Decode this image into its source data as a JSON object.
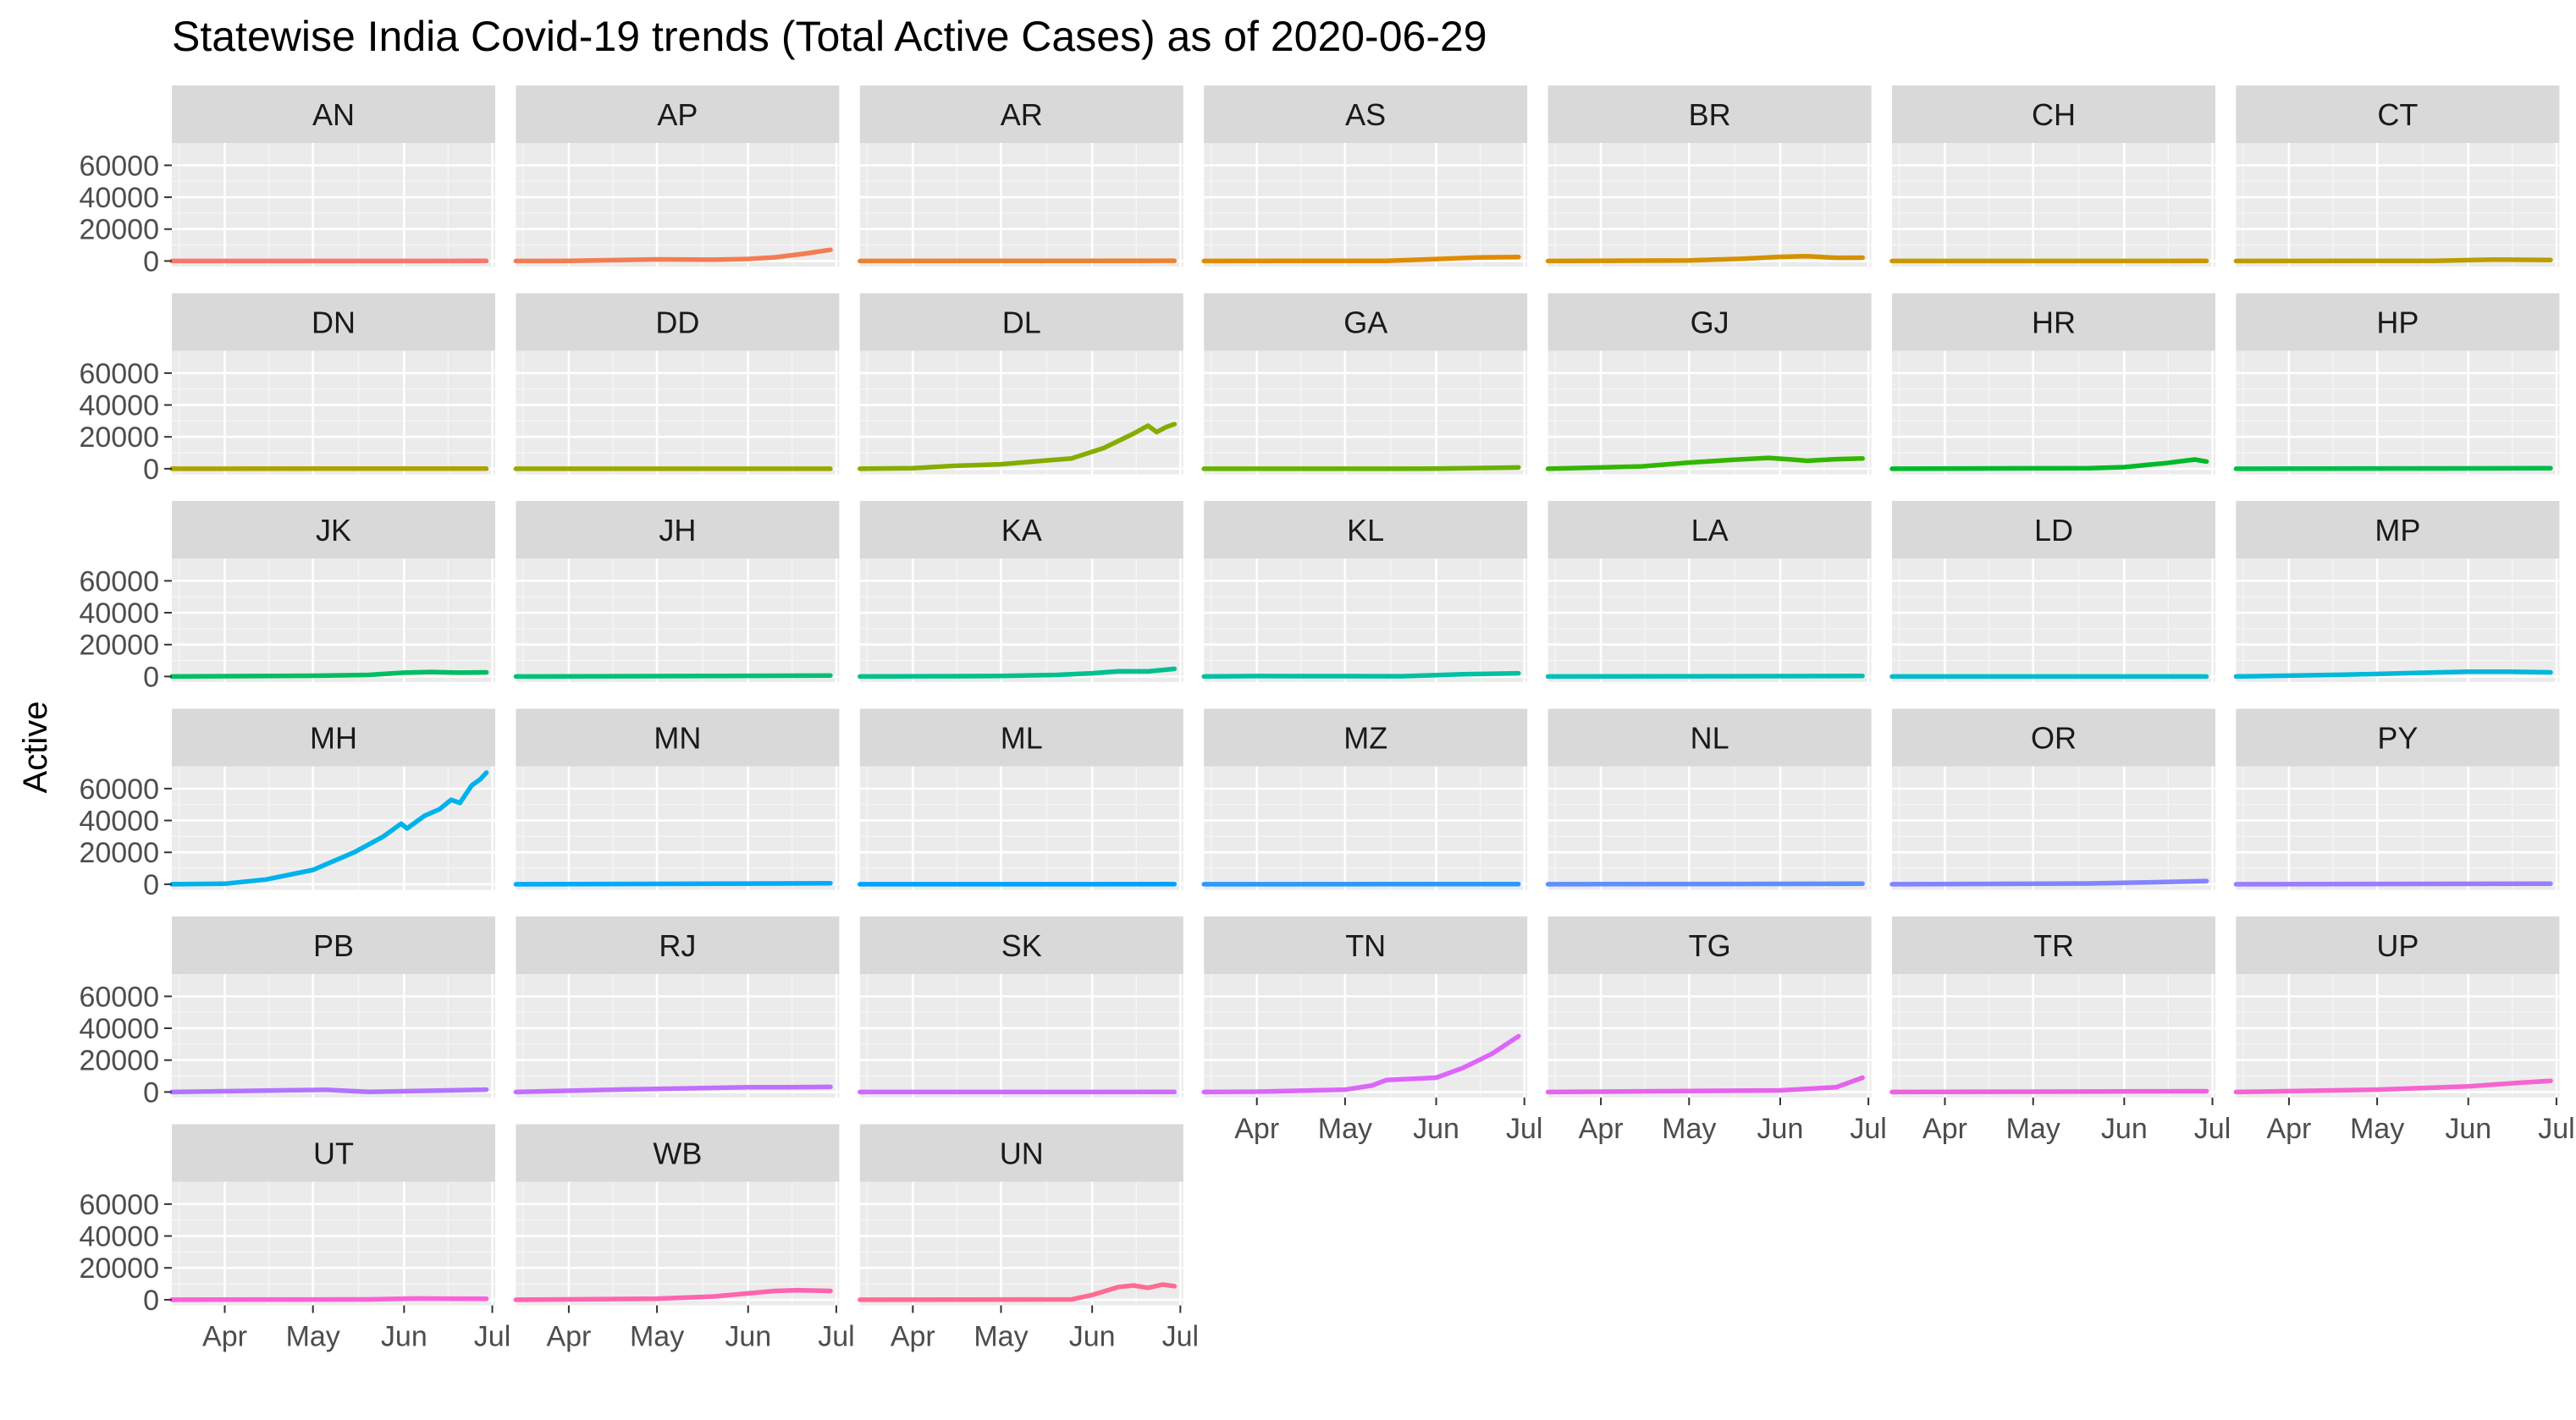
{
  "chart_data": {
    "type": "line",
    "title": "Statewise India Covid-19 trends (Total Active Cases) as of 2020-06-29",
    "xlabel": "",
    "ylabel": "Active",
    "facet_layout": {
      "columns": 7,
      "rows": 6
    },
    "x_ticks": [
      "Apr",
      "May",
      "Jun",
      "Jul"
    ],
    "x_tick_dates": [
      "2020-04-01",
      "2020-05-01",
      "2020-06-01",
      "2020-07-01"
    ],
    "xlim": [
      "2020-03-14",
      "2020-07-02"
    ],
    "y_ticks": [
      0,
      20000,
      40000,
      60000
    ],
    "ylim": [
      -3500,
      74000
    ],
    "grid": true,
    "legend": "none",
    "panel_background": "#ebebeb",
    "strip_background": "#d9d9d9",
    "series": [
      {
        "name": "AN",
        "color": "#F8766D",
        "points": [
          [
            "2020-03-14",
            0
          ],
          [
            "2020-06-29",
            40
          ]
        ]
      },
      {
        "name": "AP",
        "color": "#F27D52",
        "points": [
          [
            "2020-03-14",
            0
          ],
          [
            "2020-04-01",
            40
          ],
          [
            "2020-05-01",
            1000
          ],
          [
            "2020-05-20",
            800
          ],
          [
            "2020-06-01",
            1300
          ],
          [
            "2020-06-10",
            2300
          ],
          [
            "2020-06-20",
            4500
          ],
          [
            "2020-06-29",
            7000
          ]
        ]
      },
      {
        "name": "AR",
        "color": "#EA8331",
        "points": [
          [
            "2020-03-14",
            0
          ],
          [
            "2020-06-29",
            150
          ]
        ]
      },
      {
        "name": "AS",
        "color": "#E08B00",
        "points": [
          [
            "2020-03-14",
            0
          ],
          [
            "2020-05-15",
            100
          ],
          [
            "2020-06-01",
            1200
          ],
          [
            "2020-06-15",
            2200
          ],
          [
            "2020-06-29",
            2500
          ]
        ]
      },
      {
        "name": "BR",
        "color": "#D59100",
        "points": [
          [
            "2020-03-14",
            0
          ],
          [
            "2020-05-01",
            300
          ],
          [
            "2020-05-20",
            1500
          ],
          [
            "2020-06-01",
            2600
          ],
          [
            "2020-06-10",
            3000
          ],
          [
            "2020-06-20",
            2000
          ],
          [
            "2020-06-29",
            2100
          ]
        ]
      },
      {
        "name": "CH",
        "color": "#C99800",
        "points": [
          [
            "2020-03-14",
            0
          ],
          [
            "2020-04-20",
            20
          ],
          [
            "2020-06-29",
            60
          ]
        ]
      },
      {
        "name": "CT",
        "color": "#BB9D00",
        "points": [
          [
            "2020-03-14",
            0
          ],
          [
            "2020-05-20",
            100
          ],
          [
            "2020-06-10",
            900
          ],
          [
            "2020-06-29",
            650
          ]
        ]
      },
      {
        "name": "DN",
        "color": "#ACA300",
        "points": [
          [
            "2020-03-14",
            0
          ],
          [
            "2020-06-29",
            120
          ]
        ]
      },
      {
        "name": "DD",
        "color": "#9BA800",
        "points": [
          [
            "2020-03-14",
            0
          ],
          [
            "2020-06-29",
            10
          ]
        ]
      },
      {
        "name": "DL",
        "color": "#85AD00",
        "points": [
          [
            "2020-03-14",
            0
          ],
          [
            "2020-04-01",
            400
          ],
          [
            "2020-04-15",
            1800
          ],
          [
            "2020-05-01",
            2800
          ],
          [
            "2020-05-15",
            5000
          ],
          [
            "2020-05-25",
            6500
          ],
          [
            "2020-06-05",
            13000
          ],
          [
            "2020-06-15",
            22000
          ],
          [
            "2020-06-20",
            27000
          ],
          [
            "2020-06-23",
            23000
          ],
          [
            "2020-06-26",
            26000
          ],
          [
            "2020-06-29",
            28000
          ]
        ]
      },
      {
        "name": "GA",
        "color": "#68B100",
        "points": [
          [
            "2020-03-14",
            0
          ],
          [
            "2020-06-01",
            60
          ],
          [
            "2020-06-29",
            800
          ]
        ]
      },
      {
        "name": "GJ",
        "color": "#33B600",
        "points": [
          [
            "2020-03-14",
            0
          ],
          [
            "2020-04-15",
            1500
          ],
          [
            "2020-05-01",
            3900
          ],
          [
            "2020-05-15",
            5500
          ],
          [
            "2020-05-28",
            6800
          ],
          [
            "2020-06-05",
            5800
          ],
          [
            "2020-06-10",
            5000
          ],
          [
            "2020-06-20",
            6000
          ],
          [
            "2020-06-29",
            6400
          ]
        ]
      },
      {
        "name": "HR",
        "color": "#00B92A",
        "points": [
          [
            "2020-03-14",
            0
          ],
          [
            "2020-05-01",
            250
          ],
          [
            "2020-05-20",
            300
          ],
          [
            "2020-06-01",
            1000
          ],
          [
            "2020-06-15",
            3500
          ],
          [
            "2020-06-25",
            5800
          ],
          [
            "2020-06-29",
            4500
          ]
        ]
      },
      {
        "name": "HP",
        "color": "#00BC48",
        "points": [
          [
            "2020-03-14",
            0
          ],
          [
            "2020-06-29",
            300
          ]
        ]
      },
      {
        "name": "JK",
        "color": "#00BE61",
        "points": [
          [
            "2020-03-14",
            0
          ],
          [
            "2020-05-01",
            500
          ],
          [
            "2020-05-20",
            1000
          ],
          [
            "2020-06-01",
            2400
          ],
          [
            "2020-06-10",
            2800
          ],
          [
            "2020-06-20",
            2400
          ],
          [
            "2020-06-29",
            2600
          ]
        ]
      },
      {
        "name": "JH",
        "color": "#00C078",
        "points": [
          [
            "2020-03-14",
            0
          ],
          [
            "2020-06-29",
            600
          ]
        ]
      },
      {
        "name": "KA",
        "color": "#00C08E",
        "points": [
          [
            "2020-03-14",
            0
          ],
          [
            "2020-05-01",
            300
          ],
          [
            "2020-05-20",
            1000
          ],
          [
            "2020-06-01",
            2000
          ],
          [
            "2020-06-10",
            3300
          ],
          [
            "2020-06-20",
            3200
          ],
          [
            "2020-06-29",
            4800
          ]
        ]
      },
      {
        "name": "KL",
        "color": "#00C0A3",
        "points": [
          [
            "2020-03-14",
            0
          ],
          [
            "2020-04-01",
            250
          ],
          [
            "2020-05-01",
            200
          ],
          [
            "2020-05-20",
            150
          ],
          [
            "2020-06-10",
            1400
          ],
          [
            "2020-06-29",
            2000
          ]
        ]
      },
      {
        "name": "LA",
        "color": "#00BFB7",
        "points": [
          [
            "2020-03-14",
            0
          ],
          [
            "2020-06-29",
            300
          ]
        ]
      },
      {
        "name": "LD",
        "color": "#00BCCA",
        "points": [
          [
            "2020-03-14",
            0
          ],
          [
            "2020-06-29",
            0
          ]
        ]
      },
      {
        "name": "MP",
        "color": "#00B8DB",
        "points": [
          [
            "2020-03-14",
            0
          ],
          [
            "2020-04-20",
            1100
          ],
          [
            "2020-05-15",
            2300
          ],
          [
            "2020-06-01",
            3000
          ],
          [
            "2020-06-15",
            3000
          ],
          [
            "2020-06-29",
            2600
          ]
        ]
      },
      {
        "name": "MH",
        "color": "#00B2EB",
        "points": [
          [
            "2020-03-14",
            0
          ],
          [
            "2020-04-01",
            300
          ],
          [
            "2020-04-15",
            3000
          ],
          [
            "2020-05-01",
            9000
          ],
          [
            "2020-05-15",
            20000
          ],
          [
            "2020-05-25",
            30000
          ],
          [
            "2020-05-31",
            38000
          ],
          [
            "2020-06-02",
            35000
          ],
          [
            "2020-06-08",
            43000
          ],
          [
            "2020-06-13",
            47000
          ],
          [
            "2020-06-17",
            53000
          ],
          [
            "2020-06-20",
            51000
          ],
          [
            "2020-06-24",
            62000
          ],
          [
            "2020-06-27",
            66000
          ],
          [
            "2020-06-29",
            70000
          ]
        ]
      },
      {
        "name": "MN",
        "color": "#00ABFA",
        "points": [
          [
            "2020-03-14",
            0
          ],
          [
            "2020-06-29",
            600
          ]
        ]
      },
      {
        "name": "ML",
        "color": "#00A2FF",
        "points": [
          [
            "2020-03-14",
            0
          ],
          [
            "2020-06-29",
            40
          ]
        ]
      },
      {
        "name": "MZ",
        "color": "#2C99FF",
        "points": [
          [
            "2020-03-14",
            0
          ],
          [
            "2020-06-29",
            100
          ]
        ]
      },
      {
        "name": "NL",
        "color": "#618FFF",
        "points": [
          [
            "2020-03-14",
            0
          ],
          [
            "2020-06-29",
            300
          ]
        ]
      },
      {
        "name": "OR",
        "color": "#8285FF",
        "points": [
          [
            "2020-03-14",
            0
          ],
          [
            "2020-05-20",
            500
          ],
          [
            "2020-06-15",
            1400
          ],
          [
            "2020-06-29",
            2000
          ]
        ]
      },
      {
        "name": "PY",
        "color": "#9C7CFF",
        "points": [
          [
            "2020-03-14",
            0
          ],
          [
            "2020-06-29",
            400
          ]
        ]
      },
      {
        "name": "PB",
        "color": "#B174FF",
        "points": [
          [
            "2020-03-14",
            0
          ],
          [
            "2020-04-25",
            1100
          ],
          [
            "2020-05-05",
            1400
          ],
          [
            "2020-05-20",
            100
          ],
          [
            "2020-06-10",
            800
          ],
          [
            "2020-06-29",
            1500
          ]
        ]
      },
      {
        "name": "RJ",
        "color": "#C26EFF",
        "points": [
          [
            "2020-03-14",
            0
          ],
          [
            "2020-04-20",
            1600
          ],
          [
            "2020-05-15",
            2400
          ],
          [
            "2020-06-01",
            3000
          ],
          [
            "2020-06-15",
            3000
          ],
          [
            "2020-06-29",
            3200
          ]
        ]
      },
      {
        "name": "SK",
        "color": "#D06AFF",
        "points": [
          [
            "2020-03-14",
            0
          ],
          [
            "2020-06-29",
            50
          ]
        ]
      },
      {
        "name": "TN",
        "color": "#DC66FA",
        "points": [
          [
            "2020-03-14",
            0
          ],
          [
            "2020-04-01",
            200
          ],
          [
            "2020-05-01",
            1500
          ],
          [
            "2020-05-10",
            4000
          ],
          [
            "2020-05-15",
            7500
          ],
          [
            "2020-06-01",
            9000
          ],
          [
            "2020-06-10",
            15000
          ],
          [
            "2020-06-20",
            24000
          ],
          [
            "2020-06-29",
            35000
          ]
        ]
      },
      {
        "name": "TG",
        "color": "#E563EE",
        "points": [
          [
            "2020-03-14",
            0
          ],
          [
            "2020-05-01",
            600
          ],
          [
            "2020-06-01",
            1000
          ],
          [
            "2020-06-20",
            3000
          ],
          [
            "2020-06-29",
            9000
          ]
        ]
      },
      {
        "name": "TR",
        "color": "#EE61E0",
        "points": [
          [
            "2020-03-14",
            0
          ],
          [
            "2020-06-29",
            500
          ]
        ]
      },
      {
        "name": "UP",
        "color": "#F564D0",
        "points": [
          [
            "2020-03-14",
            0
          ],
          [
            "2020-05-01",
            1500
          ],
          [
            "2020-06-01",
            3500
          ],
          [
            "2020-06-20",
            6000
          ],
          [
            "2020-06-29",
            7000
          ]
        ]
      },
      {
        "name": "UT",
        "color": "#FB61D7",
        "points": [
          [
            "2020-03-14",
            0
          ],
          [
            "2020-05-20",
            200
          ],
          [
            "2020-06-05",
            800
          ],
          [
            "2020-06-15",
            700
          ],
          [
            "2020-06-29",
            600
          ]
        ]
      },
      {
        "name": "WB",
        "color": "#FF64B0",
        "points": [
          [
            "2020-03-14",
            0
          ],
          [
            "2020-05-01",
            700
          ],
          [
            "2020-05-20",
            2000
          ],
          [
            "2020-06-10",
            5500
          ],
          [
            "2020-06-18",
            6000
          ],
          [
            "2020-06-29",
            5500
          ]
        ]
      },
      {
        "name": "UN",
        "color": "#FF6C91",
        "points": [
          [
            "2020-03-14",
            0
          ],
          [
            "2020-05-25",
            200
          ],
          [
            "2020-06-01",
            3000
          ],
          [
            "2020-06-10",
            8000
          ],
          [
            "2020-06-15",
            9000
          ],
          [
            "2020-06-20",
            7500
          ],
          [
            "2020-06-25",
            9500
          ],
          [
            "2020-06-29",
            8500
          ]
        ]
      }
    ]
  }
}
